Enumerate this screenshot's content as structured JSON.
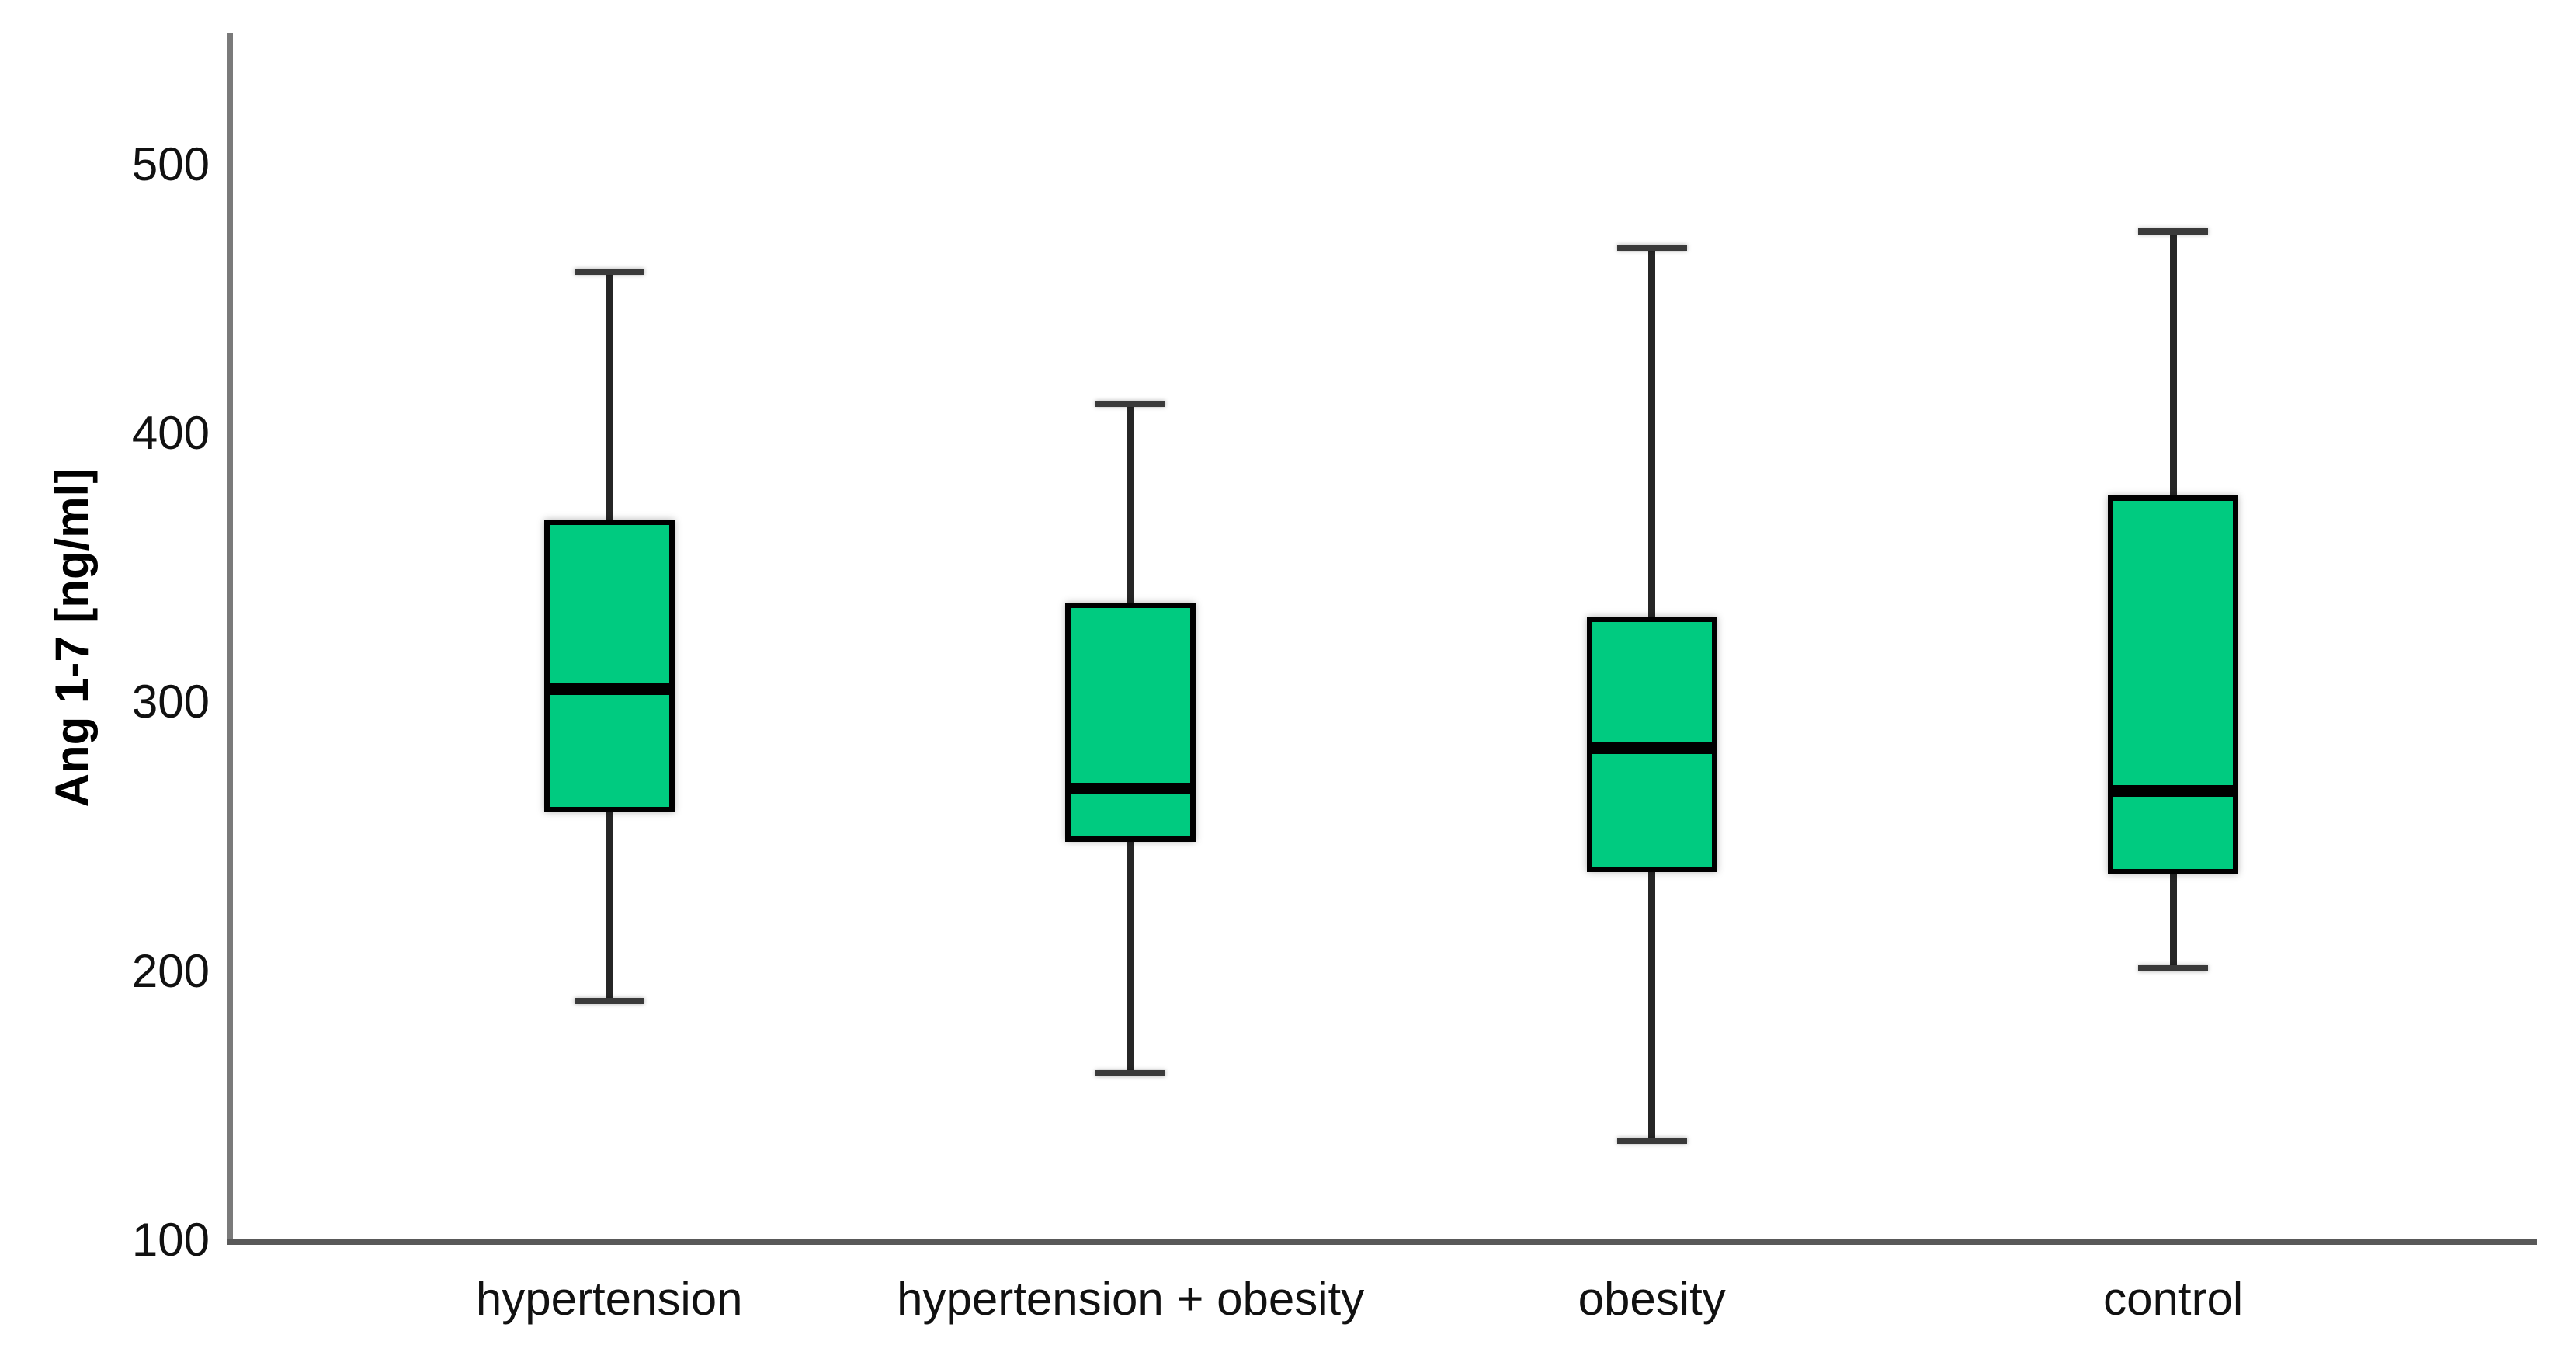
{
  "chart_data": {
    "type": "box",
    "title": "",
    "xlabel": "",
    "ylabel": "Ang 1-7 [ng/ml]",
    "ylim": [
      100,
      549
    ],
    "yticks": [
      100,
      200,
      300,
      400,
      500
    ],
    "grid": false,
    "legend": false,
    "categories": [
      "hypertension",
      "hypertension + obesity",
      "obesity",
      "control"
    ],
    "series": [
      {
        "name": "hypertension",
        "min": 189,
        "q1": 259,
        "median": 305,
        "q3": 368,
        "max": 460
      },
      {
        "name": "hypertension + obesity",
        "min": 162,
        "q1": 248,
        "median": 268,
        "q3": 337,
        "max": 411
      },
      {
        "name": "obesity",
        "min": 137,
        "q1": 237,
        "median": 283,
        "q3": 332,
        "max": 469
      },
      {
        "name": "control",
        "min": 201,
        "q1": 236,
        "median": 267,
        "q3": 377,
        "max": 475
      }
    ],
    "colors": {
      "box_fill": "#00CB80",
      "box_border": "#000000",
      "median_line": "#000000",
      "whisker": "#262626",
      "y_axis_line": "#7a7a7a",
      "x_axis_line": "#595959",
      "text": "#111111",
      "background": "#ffffff"
    }
  }
}
